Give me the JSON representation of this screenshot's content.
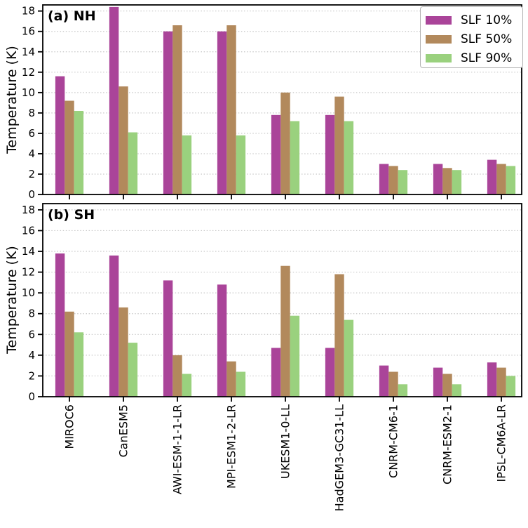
{
  "chart_data": [
    {
      "type": "bar",
      "panel_label": "(a) NH",
      "ylabel": "Temperature (K)",
      "ylim": [
        0,
        18.6
      ],
      "yticks": [
        0,
        2,
        4,
        6,
        8,
        10,
        12,
        14,
        16,
        18
      ],
      "grid": "horizontal-dotted",
      "legend_position": "upper right",
      "categories": [
        "MIROC6",
        "CanESM5",
        "AWI-ESM-1-1-LR",
        "MPI-ESM1-2-LR",
        "UKESM1-0-LL",
        "HadGEM3-GC31-LL",
        "CNRM-CM6-1",
        "CNRM-ESM2-1",
        "IPSL-CM6A-LR"
      ],
      "series": [
        {
          "name": "SLF 10%",
          "color": "#AA4499",
          "values": [
            11.6,
            18.4,
            16.0,
            16.0,
            7.8,
            7.8,
            3.0,
            3.0,
            3.4
          ]
        },
        {
          "name": "SLF 50%",
          "color": "#B2895C",
          "values": [
            9.2,
            10.6,
            16.6,
            16.6,
            10.0,
            9.6,
            2.8,
            2.6,
            3.0
          ]
        },
        {
          "name": "SLF 90%",
          "color": "#9AD17E",
          "values": [
            8.2,
            6.1,
            5.8,
            5.8,
            7.2,
            7.2,
            2.4,
            2.4,
            2.8
          ]
        }
      ]
    },
    {
      "type": "bar",
      "panel_label": "(b) SH",
      "ylabel": "Temperature (K)",
      "ylim": [
        0,
        18.6
      ],
      "yticks": [
        0,
        2,
        4,
        6,
        8,
        10,
        12,
        14,
        16,
        18
      ],
      "grid": "horizontal-dotted",
      "legend_position": "none",
      "categories": [
        "MIROC6",
        "CanESM5",
        "AWI-ESM-1-1-LR",
        "MPI-ESM1-2-LR",
        "UKESM1-0-LL",
        "HadGEM3-GC31-LL",
        "CNRM-CM6-1",
        "CNRM-ESM2-1",
        "IPSL-CM6A-LR"
      ],
      "series": [
        {
          "name": "SLF 10%",
          "color": "#AA4499",
          "values": [
            13.8,
            13.6,
            11.2,
            10.8,
            4.7,
            4.7,
            3.0,
            2.8,
            3.3
          ]
        },
        {
          "name": "SLF 50%",
          "color": "#B2895C",
          "values": [
            8.2,
            8.6,
            4.0,
            3.4,
            12.6,
            11.8,
            2.4,
            2.2,
            2.8
          ]
        },
        {
          "name": "SLF 90%",
          "color": "#9AD17E",
          "values": [
            6.2,
            5.2,
            2.2,
            2.4,
            7.8,
            7.4,
            1.2,
            1.2,
            2.0
          ]
        }
      ]
    }
  ]
}
